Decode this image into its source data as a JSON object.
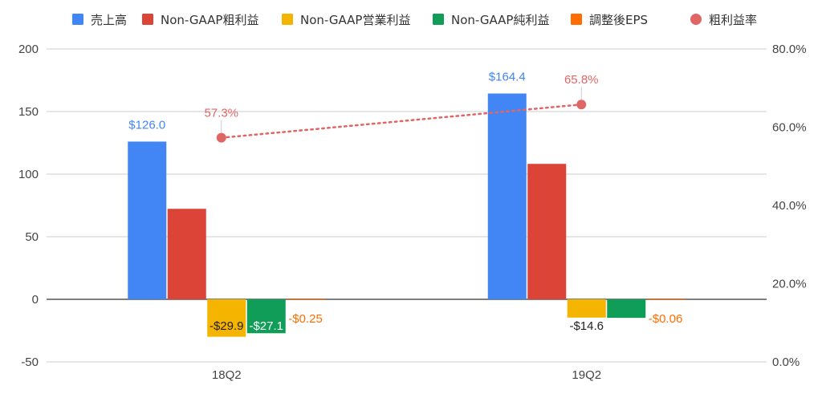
{
  "chart_data": {
    "type": "bar",
    "categories": [
      "18Q2",
      "19Q2"
    ],
    "series": [
      {
        "name": "売上高",
        "values": [
          126.0,
          164.4
        ],
        "labels": [
          "$126.0",
          "$164.4"
        ],
        "color": "#4285f4",
        "label_color": "#4285f4"
      },
      {
        "name": "Non-GAAP粗利益",
        "values": [
          72.3,
          108.2
        ],
        "labels": [
          "$72.3",
          "$108.2"
        ],
        "color": "#db4437",
        "label_color": "#db4437"
      },
      {
        "name": "Non-GAAP営業利益",
        "values": [
          -29.9,
          -14.6
        ],
        "labels": [
          "-$29.9",
          "-$14.6"
        ],
        "color": "#f4b400",
        "label_color": "#222222"
      },
      {
        "name": "Non-GAAP純利益",
        "values": [
          -27.1,
          -14.8
        ],
        "labels": [
          "-$27.1",
          "-$14.8"
        ],
        "color": "#0f9d58",
        "label_color": "#ffffff"
      },
      {
        "name": "調整後EPS",
        "values": [
          -0.25,
          -0.06
        ],
        "labels": [
          "-$0.25",
          "-$0.06"
        ],
        "color": "#ff6d01",
        "label_color": "#ff6d01"
      }
    ],
    "line_series": {
      "name": "粗利益率",
      "values": [
        57.3,
        65.8
      ],
      "labels": [
        "57.3%",
        "65.8%"
      ],
      "color": "#e06666",
      "axis": "right",
      "style": "dotted"
    },
    "ylim": [
      -50,
      200
    ],
    "y_ticks": [
      "200",
      "150",
      "100",
      "50",
      "0",
      "-50"
    ],
    "y2lim": [
      0,
      80
    ],
    "y2_ticks": [
      "80.0%",
      "60.0%",
      "40.0%",
      "20.0%",
      "0.0%"
    ],
    "grid": true,
    "legend_position": "top"
  }
}
